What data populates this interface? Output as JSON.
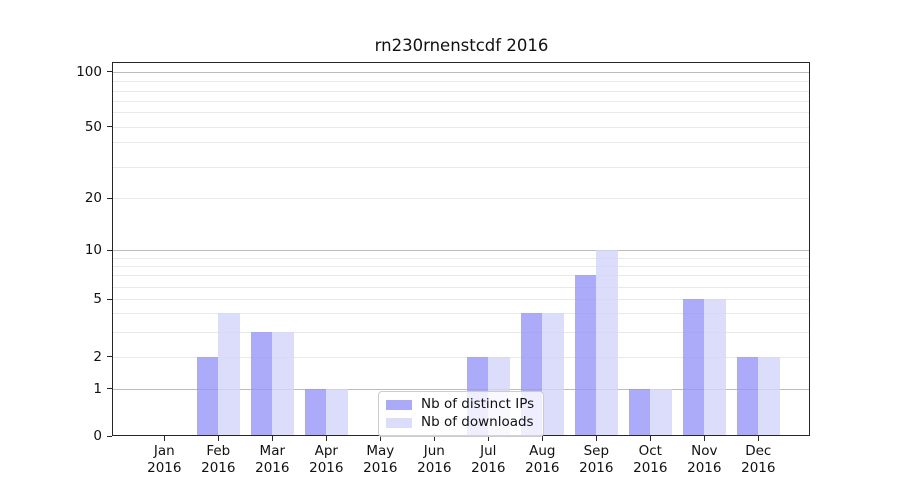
{
  "title": "rn230rnenstcdf 2016",
  "chart_data": {
    "type": "bar",
    "title": "rn230rnenstcdf 2016",
    "categories": [
      "Jan 2016",
      "Feb 2016",
      "Mar 2016",
      "Apr 2016",
      "May 2016",
      "Jun 2016",
      "Jul 2016",
      "Aug 2016",
      "Sep 2016",
      "Oct 2016",
      "Nov 2016",
      "Dec 2016"
    ],
    "series": [
      {
        "name": "Nb of distinct IPs",
        "color": "#aaaaf8",
        "fill": "rgba(150,150,248,0.8)",
        "values": [
          0,
          2,
          3,
          1,
          0,
          0,
          2,
          4,
          7,
          1,
          5,
          2
        ]
      },
      {
        "name": "Nb of downloads",
        "color": "#dcdcfb",
        "fill": "rgba(211,211,250,0.8)",
        "values": [
          0,
          4,
          3,
          1,
          0,
          0,
          2,
          4,
          10,
          1,
          5,
          2
        ]
      }
    ],
    "yticks": [
      100,
      50,
      20,
      10,
      5,
      2,
      1,
      0
    ],
    "ylim": [
      0,
      120
    ],
    "yscale": "log-like with zero baseline",
    "grid": true,
    "legend_position": "lower center"
  }
}
